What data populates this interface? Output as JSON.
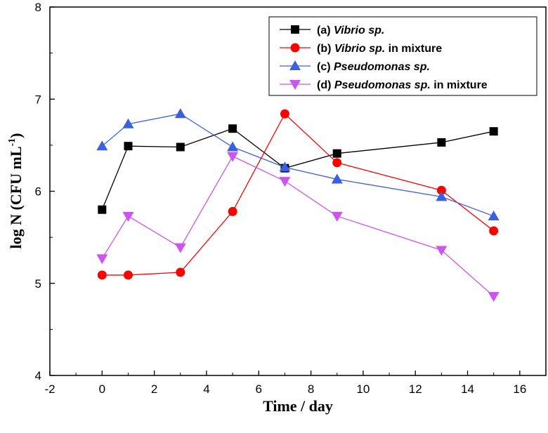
{
  "chart_data": {
    "type": "line",
    "title": "",
    "xlabel": "Time / day",
    "ylabel_main": "log N (CFU mL",
    "ylabel_sup": "-1",
    "ylabel_close": ")",
    "xlim": [
      -2,
      17
    ],
    "ylim": [
      4,
      8
    ],
    "xticks": [
      -2,
      0,
      2,
      4,
      6,
      8,
      10,
      12,
      14,
      16
    ],
    "yticks": [
      4,
      5,
      6,
      7,
      8
    ],
    "legend_position": "top-right",
    "series": [
      {
        "name": "(a) Vibrio sp.",
        "label_prefix": "(a) ",
        "label_italic": "Vibrio sp.",
        "label_suffix": "",
        "color": "#000000",
        "marker": "square",
        "x": [
          0,
          1,
          3,
          5,
          7,
          9,
          13,
          15
        ],
        "y": [
          5.8,
          6.49,
          6.48,
          6.68,
          6.25,
          6.41,
          6.53,
          6.65
        ]
      },
      {
        "name": "(b) Vibrio sp. in mixture",
        "label_prefix": "(b) ",
        "label_italic": "Vibrio sp.",
        "label_suffix": " in mixture",
        "color": "#ff0000",
        "marker": "circle",
        "x": [
          0,
          1,
          3,
          5,
          7,
          9,
          13,
          15
        ],
        "y": [
          5.09,
          5.09,
          5.12,
          5.78,
          6.84,
          6.31,
          6.01,
          5.57
        ]
      },
      {
        "name": "(c) Pseudomonas sp.",
        "label_prefix": "(c) ",
        "label_italic": "Pseudomonas sp.",
        "label_suffix": "",
        "color": "#3a5fe0",
        "marker": "triangle-up",
        "x": [
          0,
          1,
          3,
          5,
          7,
          9,
          13,
          15
        ],
        "y": [
          6.49,
          6.73,
          6.84,
          6.48,
          6.26,
          6.13,
          5.94,
          5.73
        ]
      },
      {
        "name": "(d) Pseudomonas sp. in mixture",
        "label_prefix": "(d) ",
        "label_italic": "Pseudomonas sp.",
        "label_suffix": " in mixture",
        "color": "#cc55ee",
        "marker": "triangle-down",
        "x": [
          0,
          1,
          3,
          5,
          7,
          9,
          13,
          15
        ],
        "y": [
          5.27,
          5.73,
          5.39,
          6.38,
          6.11,
          5.73,
          5.36,
          4.86
        ]
      }
    ]
  }
}
